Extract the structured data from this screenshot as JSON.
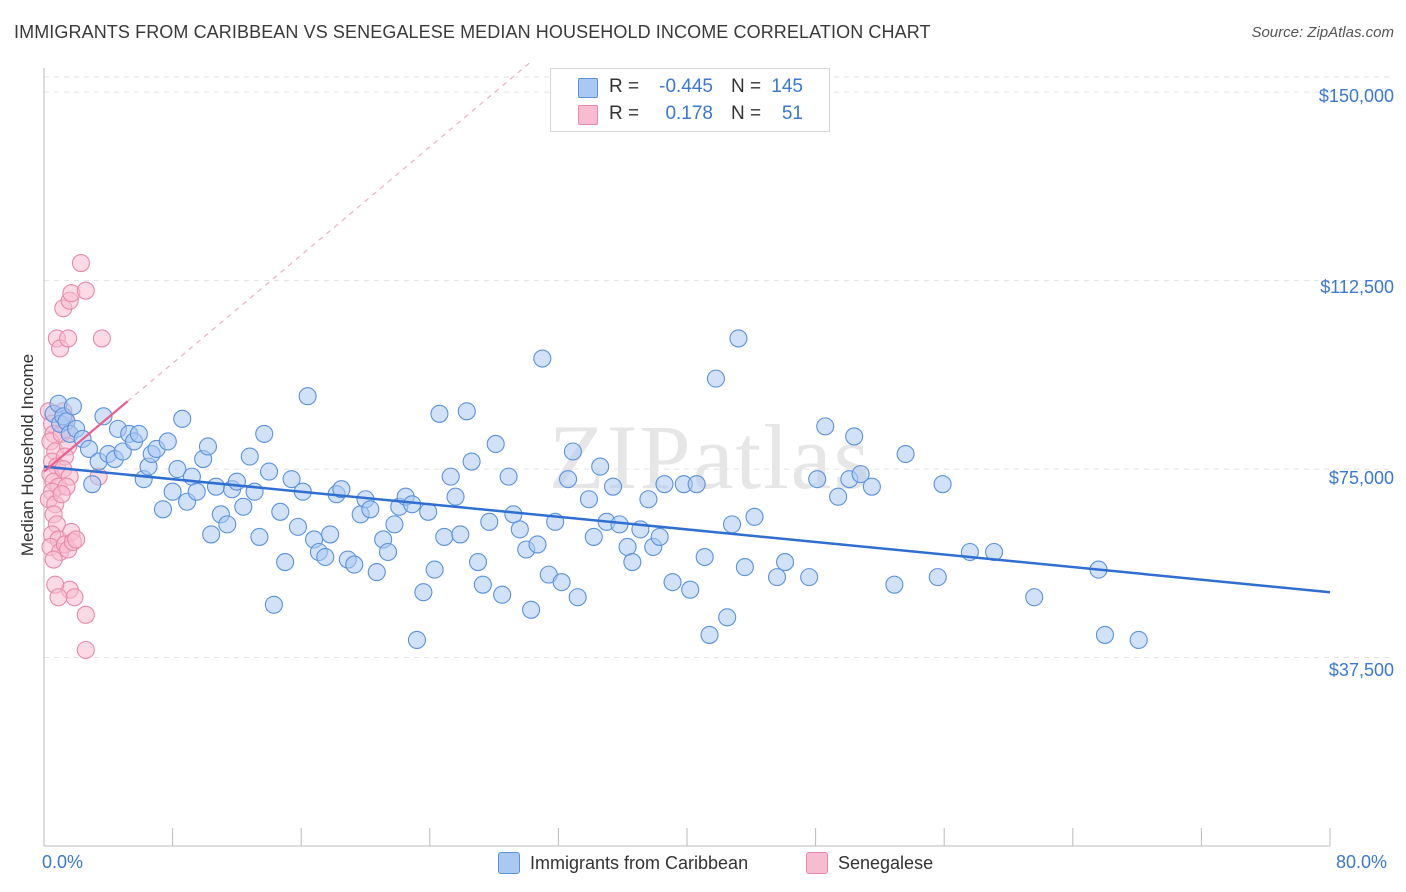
{
  "chart_data": {
    "type": "scatter",
    "title": "IMMIGRANTS FROM CARIBBEAN VS SENEGALESE MEDIAN HOUSEHOLD INCOME CORRELATION CHART",
    "source": "Source: ZipAtlas.com",
    "xlabel": "",
    "ylabel": "Median Household Income",
    "xlim": [
      0,
      80
    ],
    "ylim": [
      0,
      157000
    ],
    "x_tick_labels": [
      "0.0%",
      "80.0%"
    ],
    "y_ticks": [
      37500,
      75000,
      112500,
      150000
    ],
    "y_tick_labels": [
      "$37,500",
      "$75,000",
      "$112,500",
      "$150,000"
    ],
    "grid": true,
    "watermark": "ZIPatlas",
    "legend": [
      {
        "r_label": "R =",
        "r_value": "-0.445",
        "n_label": "N =",
        "n_value": "145"
      },
      {
        "r_label": "R =",
        "r_value": "0.178",
        "n_label": "N =",
        "n_value": "51"
      }
    ],
    "colors": {
      "blue_fill": "#a9c8f2",
      "blue_stroke": "#5b92dd",
      "blue_line": "#2e6fd0",
      "pink_fill": "#f7bcd0",
      "pink_stroke": "#e889a9",
      "pink_line": "#e8608e",
      "tick_text": "#3b78d1",
      "grid": "#e2e2e2"
    },
    "series": [
      {
        "name": "Immigrants from Caribbean",
        "trend": {
          "x": [
            0,
            80
          ],
          "y": [
            75500,
            50500
          ]
        },
        "points": [
          [
            0.6,
            86000
          ],
          [
            0.9,
            88000
          ],
          [
            1.0,
            84000
          ],
          [
            1.2,
            85500
          ],
          [
            1.4,
            84500
          ],
          [
            1.6,
            82000
          ],
          [
            1.8,
            87500
          ],
          [
            2.0,
            83000
          ],
          [
            2.4,
            81000
          ],
          [
            2.8,
            79000
          ],
          [
            3.0,
            72000
          ],
          [
            3.4,
            76500
          ],
          [
            3.7,
            85500
          ],
          [
            4.0,
            78000
          ],
          [
            4.4,
            77000
          ],
          [
            4.6,
            83000
          ],
          [
            4.9,
            78500
          ],
          [
            5.3,
            82000
          ],
          [
            5.6,
            80500
          ],
          [
            5.9,
            82000
          ],
          [
            6.2,
            73000
          ],
          [
            6.5,
            75500
          ],
          [
            6.7,
            78000
          ],
          [
            7.0,
            79000
          ],
          [
            7.4,
            67000
          ],
          [
            7.7,
            80500
          ],
          [
            8.0,
            70500
          ],
          [
            8.3,
            75000
          ],
          [
            8.6,
            85000
          ],
          [
            8.9,
            68500
          ],
          [
            9.2,
            73500
          ],
          [
            9.5,
            70500
          ],
          [
            9.9,
            77000
          ],
          [
            10.2,
            79500
          ],
          [
            10.4,
            62000
          ],
          [
            10.7,
            71500
          ],
          [
            11.0,
            66000
          ],
          [
            11.4,
            64000
          ],
          [
            11.7,
            71000
          ],
          [
            12.0,
            72500
          ],
          [
            12.4,
            67500
          ],
          [
            12.8,
            77500
          ],
          [
            13.1,
            70500
          ],
          [
            13.4,
            61500
          ],
          [
            13.7,
            82000
          ],
          [
            14.0,
            74500
          ],
          [
            14.3,
            48000
          ],
          [
            14.7,
            66500
          ],
          [
            15.0,
            56500
          ],
          [
            15.4,
            73000
          ],
          [
            15.8,
            63500
          ],
          [
            16.1,
            70500
          ],
          [
            16.4,
            89500
          ],
          [
            16.8,
            61000
          ],
          [
            17.1,
            58500
          ],
          [
            17.5,
            57500
          ],
          [
            17.8,
            62000
          ],
          [
            18.2,
            70000
          ],
          [
            18.5,
            71000
          ],
          [
            18.9,
            57000
          ],
          [
            19.3,
            56000
          ],
          [
            19.7,
            66000
          ],
          [
            20.0,
            69000
          ],
          [
            20.3,
            67000
          ],
          [
            20.7,
            54500
          ],
          [
            21.1,
            61000
          ],
          [
            21.4,
            58500
          ],
          [
            21.8,
            64000
          ],
          [
            22.1,
            67500
          ],
          [
            22.5,
            69500
          ],
          [
            22.9,
            68000
          ],
          [
            23.2,
            41000
          ],
          [
            23.6,
            50500
          ],
          [
            23.9,
            66500
          ],
          [
            24.3,
            55000
          ],
          [
            24.6,
            86000
          ],
          [
            24.9,
            61500
          ],
          [
            25.3,
            73500
          ],
          [
            25.6,
            69500
          ],
          [
            25.9,
            62000
          ],
          [
            26.3,
            86500
          ],
          [
            26.6,
            76500
          ],
          [
            27.0,
            56500
          ],
          [
            27.3,
            52000
          ],
          [
            27.7,
            64500
          ],
          [
            28.1,
            80000
          ],
          [
            28.5,
            50000
          ],
          [
            28.9,
            73500
          ],
          [
            29.2,
            66000
          ],
          [
            29.6,
            63000
          ],
          [
            30.0,
            59000
          ],
          [
            30.3,
            47000
          ],
          [
            30.7,
            60000
          ],
          [
            31.0,
            97000
          ],
          [
            31.4,
            54000
          ],
          [
            31.8,
            64500
          ],
          [
            32.2,
            52500
          ],
          [
            32.6,
            73000
          ],
          [
            32.9,
            78500
          ],
          [
            33.2,
            49500
          ],
          [
            33.9,
            69000
          ],
          [
            34.2,
            61500
          ],
          [
            34.6,
            75500
          ],
          [
            35.0,
            64500
          ],
          [
            35.4,
            71500
          ],
          [
            35.8,
            64000
          ],
          [
            36.3,
            59500
          ],
          [
            36.6,
            56500
          ],
          [
            37.1,
            63000
          ],
          [
            37.6,
            69000
          ],
          [
            37.9,
            59500
          ],
          [
            38.3,
            61500
          ],
          [
            38.6,
            72000
          ],
          [
            39.1,
            52500
          ],
          [
            39.8,
            72000
          ],
          [
            40.2,
            51000
          ],
          [
            40.6,
            72000
          ],
          [
            41.1,
            57500
          ],
          [
            41.4,
            42000
          ],
          [
            41.8,
            93000
          ],
          [
            42.5,
            45500
          ],
          [
            42.8,
            64000
          ],
          [
            43.2,
            101000
          ],
          [
            43.6,
            55500
          ],
          [
            44.2,
            65500
          ],
          [
            45.6,
            53500
          ],
          [
            46.1,
            56500
          ],
          [
            47.6,
            53500
          ],
          [
            48.1,
            73000
          ],
          [
            48.6,
            83500
          ],
          [
            49.4,
            69500
          ],
          [
            50.1,
            73000
          ],
          [
            50.4,
            81500
          ],
          [
            50.8,
            74000
          ],
          [
            51.5,
            71500
          ],
          [
            52.9,
            52000
          ],
          [
            53.6,
            78000
          ],
          [
            55.6,
            53500
          ],
          [
            55.9,
            72000
          ],
          [
            57.6,
            58500
          ],
          [
            59.1,
            58500
          ],
          [
            61.6,
            49500
          ],
          [
            65.6,
            55000
          ],
          [
            66.0,
            42000
          ],
          [
            68.1,
            41000
          ]
        ]
      },
      {
        "name": "Senegalese",
        "trend": {
          "x": [
            0,
            5.2
          ],
          "y": [
            74500,
            88500
          ]
        },
        "points": [
          [
            0.3,
            86500
          ],
          [
            0.5,
            84000
          ],
          [
            0.6,
            82000
          ],
          [
            0.4,
            80500
          ],
          [
            0.7,
            78500
          ],
          [
            0.5,
            76500
          ],
          [
            0.8,
            75500
          ],
          [
            0.4,
            74000
          ],
          [
            0.6,
            72500
          ],
          [
            0.9,
            71500
          ],
          [
            0.5,
            70500
          ],
          [
            0.3,
            69000
          ],
          [
            0.7,
            68000
          ],
          [
            0.6,
            66000
          ],
          [
            0.8,
            64000
          ],
          [
            0.5,
            62000
          ],
          [
            0.9,
            61000
          ],
          [
            0.4,
            59500
          ],
          [
            1.0,
            58500
          ],
          [
            0.6,
            57000
          ],
          [
            1.2,
            86500
          ],
          [
            1.3,
            85000
          ],
          [
            1.4,
            83000
          ],
          [
            1.1,
            82000
          ],
          [
            1.5,
            79500
          ],
          [
            1.3,
            77500
          ],
          [
            1.2,
            75000
          ],
          [
            1.6,
            73500
          ],
          [
            1.4,
            71500
          ],
          [
            1.1,
            70000
          ],
          [
            1.7,
            62500
          ],
          [
            1.3,
            60000
          ],
          [
            1.5,
            59000
          ],
          [
            1.8,
            60500
          ],
          [
            2.0,
            61000
          ],
          [
            1.6,
            51000
          ],
          [
            1.9,
            49500
          ],
          [
            0.8,
            101000
          ],
          [
            1.0,
            99000
          ],
          [
            1.2,
            107000
          ],
          [
            1.5,
            101000
          ],
          [
            1.6,
            108500
          ],
          [
            1.7,
            110000
          ],
          [
            2.3,
            116000
          ],
          [
            2.6,
            110500
          ],
          [
            3.6,
            101000
          ],
          [
            0.7,
            52000
          ],
          [
            0.9,
            49500
          ],
          [
            2.6,
            46000
          ],
          [
            2.6,
            39000
          ],
          [
            3.4,
            73500
          ]
        ]
      }
    ]
  }
}
